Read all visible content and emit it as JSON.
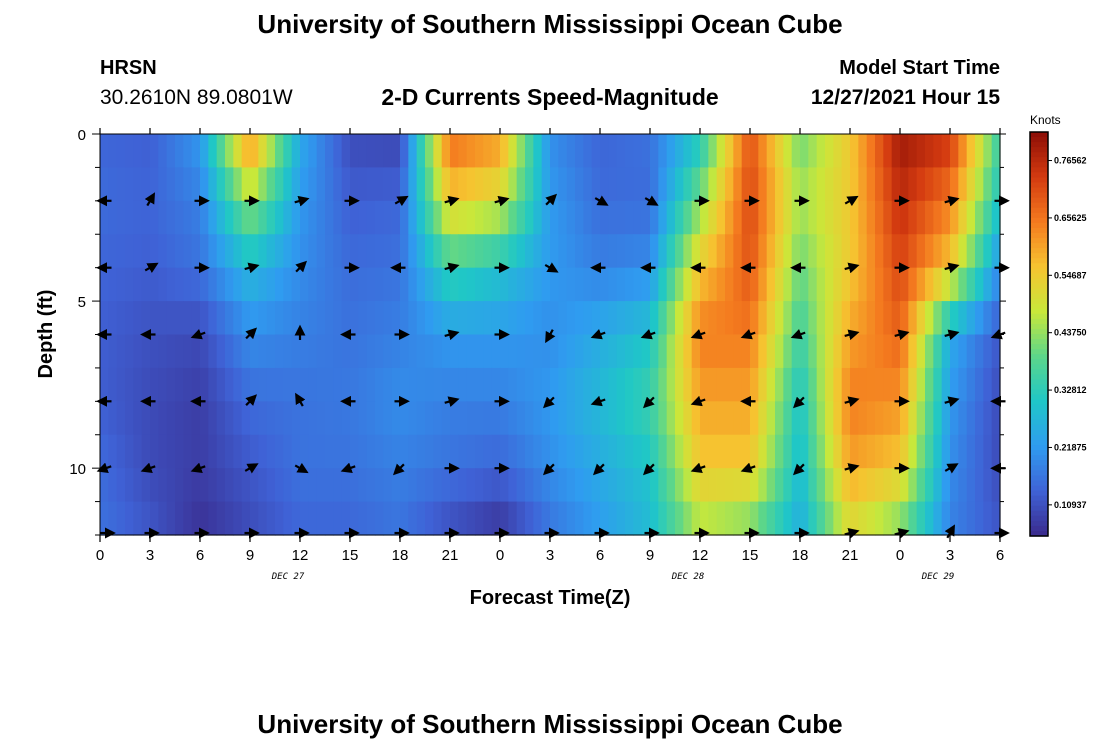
{
  "header": {
    "title": "University of Southern Mississippi Ocean Cube",
    "station": "HRSN",
    "coords": "30.2610N  89.0801W",
    "subtitle": "2-D Currents Speed-Magnitude",
    "start_label": "Model Start Time",
    "start_value": "12/27/2021 Hour 15",
    "footer_title": "University of Southern Mississippi Ocean Cube"
  },
  "colors": {
    "scale": [
      "#3a2a8c",
      "#3f62d6",
      "#2f9cf0",
      "#1fc7c7",
      "#5cd68a",
      "#c9e83a",
      "#f6c330",
      "#f47a1f",
      "#d33a10",
      "#8c0e06"
    ]
  },
  "chart_data": {
    "type": "heatmap",
    "xlabel": "Forecast Time(Z)",
    "ylabel": "Depth (ft)",
    "colorbar_label": "Knots",
    "colorbar_ticks": [
      "0.76562",
      "0.65625",
      "0.54687",
      "0.43750",
      "0.32812",
      "0.21875",
      "0.10937"
    ],
    "color_range": [
      0.05,
      0.82
    ],
    "xlim": [
      0,
      54
    ],
    "ylim": [
      12,
      0
    ],
    "x_tick_values": [
      0,
      3,
      6,
      9,
      12,
      15,
      18,
      21,
      24,
      27,
      30,
      33,
      36,
      39,
      42,
      45,
      48,
      51
    ],
    "x_tick_labels": [
      "0",
      "3",
      "6",
      "9",
      "12",
      "15",
      "18",
      "21",
      "0",
      "3",
      "6",
      "9",
      "12",
      "15",
      "18",
      "21",
      "0",
      "3",
      "6"
    ],
    "y_tick_values": [
      0,
      5,
      10
    ],
    "y_tick_labels": [
      "0",
      "5",
      "10"
    ],
    "day_labels": [
      {
        "text": "DEC 27",
        "x": 12
      },
      {
        "text": "DEC 28",
        "x": 36
      },
      {
        "text": "DEC 29",
        "x": 51
      }
    ],
    "times": [
      0,
      3,
      6,
      9,
      12,
      15,
      18,
      21,
      24,
      27,
      30,
      33,
      36,
      39,
      42,
      45,
      48,
      51,
      54
    ],
    "depths": [
      0,
      2,
      4,
      6,
      8,
      10,
      12
    ],
    "speeds": [
      [
        0.14,
        0.13,
        0.22,
        0.65,
        0.25,
        0.1,
        0.09,
        0.68,
        0.62,
        0.2,
        0.14,
        0.16,
        0.3,
        0.7,
        0.4,
        0.55,
        0.8,
        0.75,
        0.35
      ],
      [
        0.15,
        0.14,
        0.18,
        0.45,
        0.22,
        0.13,
        0.14,
        0.55,
        0.5,
        0.22,
        0.15,
        0.15,
        0.42,
        0.72,
        0.45,
        0.55,
        0.76,
        0.65,
        0.3
      ],
      [
        0.14,
        0.13,
        0.16,
        0.28,
        0.2,
        0.15,
        0.16,
        0.35,
        0.3,
        0.22,
        0.18,
        0.2,
        0.55,
        0.7,
        0.4,
        0.55,
        0.72,
        0.55,
        0.2
      ],
      [
        0.13,
        0.11,
        0.1,
        0.2,
        0.18,
        0.16,
        0.18,
        0.22,
        0.22,
        0.2,
        0.25,
        0.3,
        0.65,
        0.65,
        0.35,
        0.6,
        0.68,
        0.25,
        0.12
      ],
      [
        0.13,
        0.1,
        0.08,
        0.15,
        0.16,
        0.17,
        0.2,
        0.18,
        0.18,
        0.22,
        0.28,
        0.35,
        0.6,
        0.6,
        0.3,
        0.65,
        0.62,
        0.22,
        0.1
      ],
      [
        0.15,
        0.1,
        0.08,
        0.12,
        0.16,
        0.16,
        0.18,
        0.16,
        0.14,
        0.2,
        0.25,
        0.3,
        0.55,
        0.55,
        0.28,
        0.6,
        0.55,
        0.2,
        0.1
      ],
      [
        0.16,
        0.12,
        0.06,
        0.1,
        0.14,
        0.14,
        0.16,
        0.1,
        0.06,
        0.16,
        0.22,
        0.28,
        0.45,
        0.4,
        0.25,
        0.5,
        0.4,
        0.18,
        0.12
      ]
    ],
    "vector_times": [
      0,
      3,
      6,
      9,
      12,
      15,
      18,
      21,
      24,
      27,
      30,
      33,
      36,
      39,
      42,
      45,
      48,
      51,
      54
    ],
    "vector_depths": [
      2,
      4,
      6,
      8,
      10,
      12
    ],
    "vector_directions": [
      [
        180,
        60,
        0,
        0,
        15,
        0,
        30,
        15,
        15,
        45,
        330,
        330,
        0,
        0,
        0,
        30,
        0,
        15,
        0
      ],
      [
        180,
        30,
        0,
        15,
        45,
        0,
        180,
        15,
        0,
        330,
        180,
        180,
        180,
        180,
        180,
        15,
        0,
        15,
        0
      ],
      [
        180,
        180,
        200,
        45,
        90,
        180,
        0,
        15,
        0,
        240,
        200,
        200,
        200,
        200,
        200,
        15,
        15,
        15,
        200
      ],
      [
        180,
        180,
        180,
        45,
        120,
        180,
        0,
        15,
        0,
        225,
        200,
        225,
        200,
        180,
        225,
        15,
        0,
        15,
        180
      ],
      [
        200,
        200,
        200,
        30,
        330,
        200,
        225,
        0,
        0,
        225,
        225,
        225,
        200,
        200,
        225,
        15,
        0,
        30,
        180
      ],
      [
        0,
        0,
        0,
        0,
        0,
        0,
        0,
        0,
        0,
        0,
        0,
        0,
        0,
        0,
        0,
        15,
        15,
        60,
        0
      ]
    ]
  }
}
